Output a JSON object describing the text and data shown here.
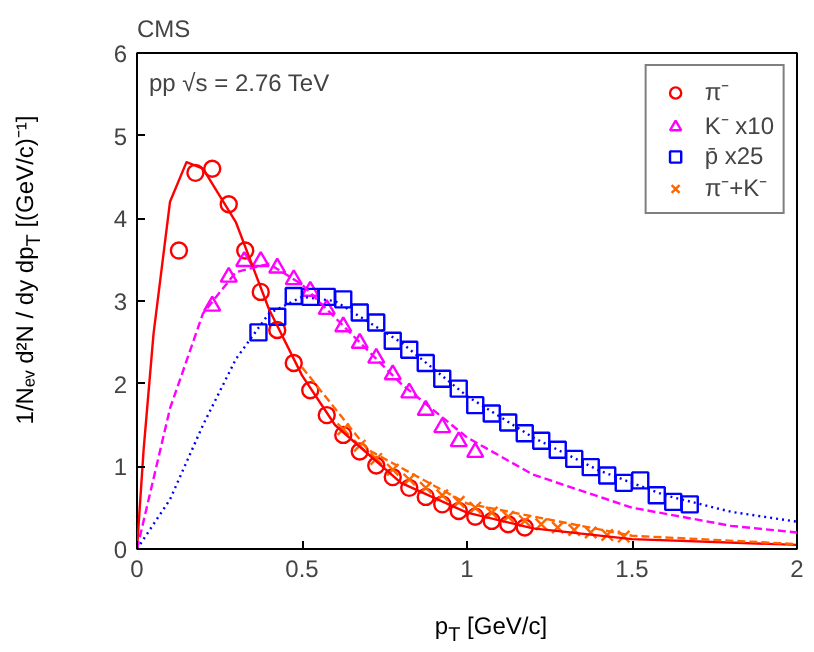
{
  "chart_data": {
    "type": "scatter",
    "title": "CMS",
    "xlabel": "p$_{T}$ [GeV/c]",
    "ylabel": "1/Nₑᵥ d²N / dy dp$_{T}$ [(GeV/c)⁻¹]",
    "annotations": [
      "pp √s = 2.76 TeV"
    ],
    "xlim": [
      0,
      2
    ],
    "ylim": [
      0,
      6
    ],
    "xticks": [
      0,
      0.5,
      1,
      1.5,
      2
    ],
    "yticks": [
      0,
      1,
      2,
      3,
      4,
      5,
      6
    ],
    "grid": false,
    "legend": "top right",
    "series": [
      {
        "name": "π⁻",
        "color": "#ff0000",
        "marker": "circle",
        "x": [
          0.127,
          0.177,
          0.228,
          0.278,
          0.328,
          0.375,
          0.425,
          0.475,
          0.525,
          0.575,
          0.625,
          0.675,
          0.725,
          0.775,
          0.825,
          0.875,
          0.925,
          0.975,
          1.025,
          1.075,
          1.125,
          1.175
        ],
        "values": [
          3.61,
          4.55,
          4.6,
          4.17,
          3.61,
          3.11,
          2.65,
          2.25,
          1.92,
          1.62,
          1.38,
          1.18,
          1.01,
          0.87,
          0.74,
          0.63,
          0.54,
          0.46,
          0.39,
          0.34,
          0.3,
          0.26
        ]
      },
      {
        "name": "K⁻ x10",
        "color": "#ff00ff",
        "marker": "triangle",
        "x": [
          0.228,
          0.278,
          0.325,
          0.375,
          0.425,
          0.475,
          0.525,
          0.575,
          0.625,
          0.675,
          0.725,
          0.775,
          0.825,
          0.875,
          0.925,
          0.975,
          1.025
        ],
        "values": [
          2.94,
          3.29,
          3.48,
          3.48,
          3.4,
          3.26,
          3.12,
          2.9,
          2.69,
          2.49,
          2.31,
          2.11,
          1.89,
          1.68,
          1.47,
          1.3,
          1.17
        ]
      },
      {
        "name": "p̄ x25",
        "color": "#0000ff",
        "marker": "square",
        "x": [
          0.368,
          0.425,
          0.475,
          0.525,
          0.575,
          0.625,
          0.675,
          0.725,
          0.775,
          0.825,
          0.875,
          0.925,
          0.975,
          1.025,
          1.075,
          1.125,
          1.175,
          1.225,
          1.275,
          1.325,
          1.375,
          1.425,
          1.475,
          1.525,
          1.575,
          1.625,
          1.675
        ],
        "values": [
          2.62,
          2.81,
          3.06,
          3.05,
          3.05,
          3.02,
          2.86,
          2.74,
          2.52,
          2.41,
          2.25,
          2.06,
          1.94,
          1.74,
          1.64,
          1.53,
          1.4,
          1.31,
          1.2,
          1.09,
          0.99,
          0.89,
          0.8,
          0.83,
          0.65,
          0.57,
          0.54
        ]
      },
      {
        "name": "π⁻+K⁻",
        "color": "#ff6600",
        "marker": "cross",
        "x": [
          0.625,
          0.675,
          0.725,
          0.775,
          0.825,
          0.875,
          0.925,
          0.975,
          1.025,
          1.075,
          1.125,
          1.175,
          1.225,
          1.275,
          1.325,
          1.375,
          1.425,
          1.475
        ],
        "values": [
          1.45,
          1.25,
          1.09,
          0.96,
          0.84,
          0.74,
          0.65,
          0.57,
          0.5,
          0.44,
          0.39,
          0.34,
          0.3,
          0.26,
          0.23,
          0.2,
          0.17,
          0.15
        ]
      },
      {
        "type": "line",
        "line_style": "solid",
        "color": "#ff0000",
        "x": [
          0,
          0.02,
          0.05,
          0.1,
          0.15,
          0.2,
          0.3,
          0.4,
          0.5,
          0.6,
          0.8,
          1.0,
          1.2,
          1.5,
          2.0
        ],
        "values": [
          0,
          1.2,
          2.6,
          4.2,
          4.68,
          4.6,
          3.95,
          2.9,
          2.1,
          1.5,
          0.8,
          0.44,
          0.25,
          0.12,
          0.05
        ]
      },
      {
        "type": "line",
        "line_style": "dashed",
        "color": "#ff00ff",
        "x": [
          0,
          0.1,
          0.2,
          0.3,
          0.4,
          0.5,
          0.6,
          0.8,
          1.0,
          1.2,
          1.5,
          1.8,
          2.0
        ],
        "values": [
          0,
          1.7,
          2.85,
          3.35,
          3.45,
          3.2,
          2.8,
          2.0,
          1.35,
          0.9,
          0.5,
          0.28,
          0.2
        ]
      },
      {
        "type": "line",
        "line_style": "dotted",
        "color": "#0000ff",
        "x": [
          0,
          0.1,
          0.2,
          0.3,
          0.4,
          0.5,
          0.6,
          0.8,
          1.0,
          1.2,
          1.4,
          1.6,
          1.8,
          2.0
        ],
        "values": [
          0,
          0.6,
          1.5,
          2.3,
          2.85,
          3.05,
          3.0,
          2.5,
          1.85,
          1.35,
          0.95,
          0.65,
          0.45,
          0.33
        ]
      },
      {
        "type": "line",
        "line_style": "dashed",
        "color": "#ff6600",
        "x": [
          0.5,
          0.7,
          1.0,
          1.5,
          2.0
        ],
        "values": [
          2.2,
          1.2,
          0.55,
          0.16,
          0.06
        ]
      }
    ]
  }
}
